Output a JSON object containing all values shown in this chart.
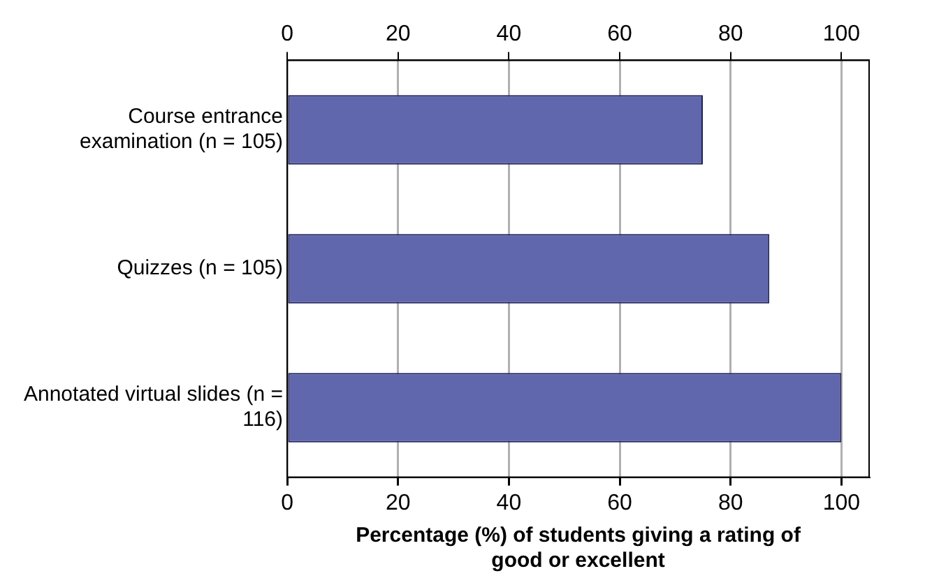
{
  "chart_data": {
    "type": "bar",
    "orientation": "horizontal",
    "xlabel": "Percentage (%) of students giving a rating of good or excellent",
    "categories": [
      "Course entrance examination (n = 105)",
      "Quizzes (n = 105)",
      "Annotated virtual slides (n = 116)"
    ],
    "values": [
      75,
      87,
      100
    ],
    "color": "#6167ad",
    "xlim": [
      0,
      105
    ],
    "xticks": [
      0,
      20,
      40,
      60,
      80,
      100
    ],
    "x2lim": [
      0,
      105
    ],
    "x2ticks": [
      0,
      20,
      40,
      60,
      80,
      100
    ],
    "grid": "x",
    "legend": false
  }
}
